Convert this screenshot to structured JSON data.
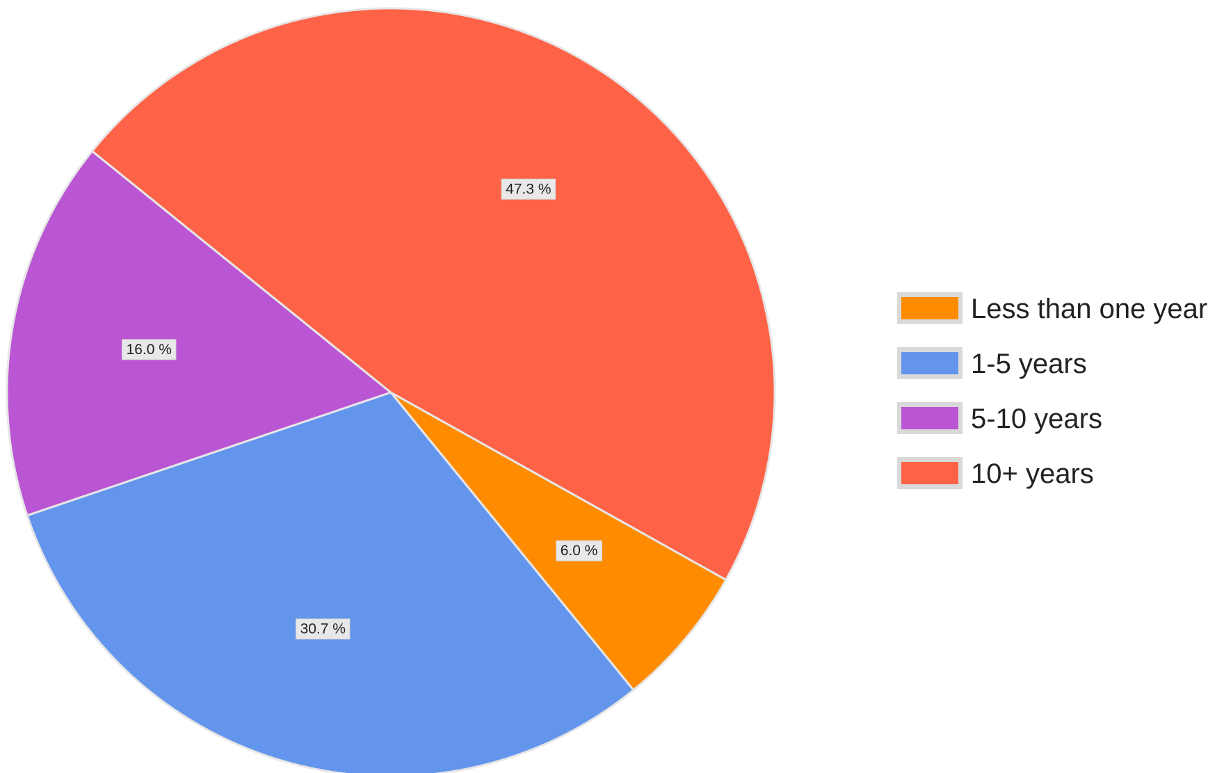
{
  "chart_data": {
    "type": "pie",
    "categories": [
      "Less than one year",
      "1-5 years",
      "5-10 years",
      "10+ years"
    ],
    "values": [
      6.0,
      30.7,
      16.0,
      47.3
    ],
    "value_labels": [
      "6.0 %",
      "30.7 %",
      "16.0 %",
      "47.3 %"
    ],
    "colors": [
      "#FF8C00",
      "#6495ED",
      "#BA55D3",
      "#FF6347"
    ],
    "legend": "right",
    "start": "starts at the 4 o'clock radius and runs clockwise"
  }
}
